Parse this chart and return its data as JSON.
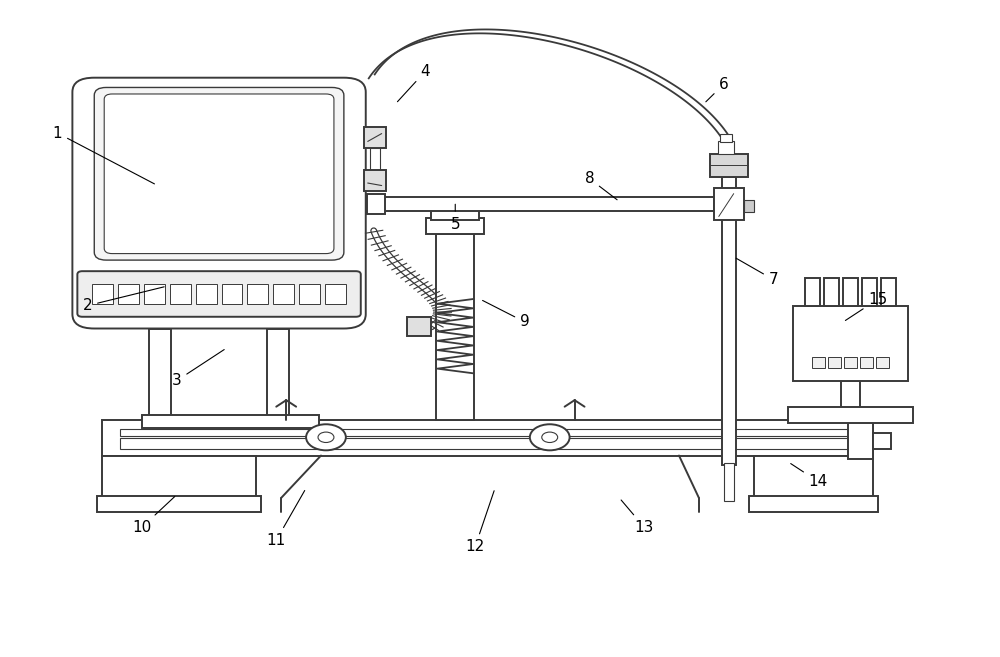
{
  "bg_color": "#ffffff",
  "line_color": "#3a3a3a",
  "line_width": 1.4,
  "fig_w": 10.0,
  "fig_h": 6.57,
  "dpi": 100,
  "labels": [
    [
      1,
      0.055,
      0.8,
      0.155,
      0.72
    ],
    [
      2,
      0.085,
      0.535,
      0.165,
      0.565
    ],
    [
      3,
      0.175,
      0.42,
      0.225,
      0.47
    ],
    [
      4,
      0.425,
      0.895,
      0.395,
      0.845
    ],
    [
      5,
      0.455,
      0.66,
      0.455,
      0.695
    ],
    [
      6,
      0.725,
      0.875,
      0.705,
      0.845
    ],
    [
      7,
      0.775,
      0.575,
      0.735,
      0.61
    ],
    [
      8,
      0.59,
      0.73,
      0.62,
      0.695
    ],
    [
      9,
      0.525,
      0.51,
      0.48,
      0.545
    ],
    [
      10,
      0.14,
      0.195,
      0.175,
      0.245
    ],
    [
      11,
      0.275,
      0.175,
      0.305,
      0.255
    ],
    [
      12,
      0.475,
      0.165,
      0.495,
      0.255
    ],
    [
      13,
      0.645,
      0.195,
      0.62,
      0.24
    ],
    [
      14,
      0.82,
      0.265,
      0.79,
      0.295
    ],
    [
      15,
      0.88,
      0.545,
      0.845,
      0.51
    ]
  ]
}
